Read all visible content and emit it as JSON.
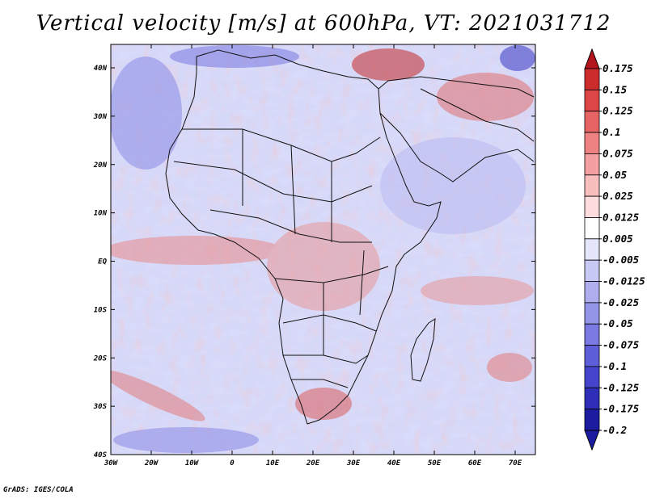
{
  "title": "Vertical velocity [m/s] at 600hPa, VT: 2021031712",
  "footer": "GrADS: IGES/COLA",
  "map": {
    "region": "Africa",
    "variable": "Vertical velocity",
    "units": "m/s",
    "level": "600hPa",
    "valid_time": "2021031712",
    "lat_labels": [
      "40N",
      "30N",
      "20N",
      "10N",
      "EQ",
      "10S",
      "20S",
      "30S",
      "40S"
    ],
    "lon_labels": [
      "30W",
      "20W",
      "10W",
      "0",
      "10E",
      "20E",
      "30E",
      "40E",
      "50E",
      "60E",
      "70E"
    ]
  },
  "colorbar": {
    "levels": [
      "0.175",
      "0.15",
      "0.125",
      "0.1",
      "0.075",
      "0.05",
      "0.025",
      "0.0125",
      "0.005",
      "-0.005",
      "-0.0125",
      "-0.025",
      "-0.05",
      "-0.075",
      "-0.1",
      "-0.125",
      "-0.175",
      "-0.2"
    ],
    "colors": [
      "#b4141e",
      "#cc2c2c",
      "#dc4646",
      "#e66464",
      "#ee8282",
      "#f4a0a0",
      "#f8bebe",
      "#fcdcdc",
      "#ffffff",
      "#e4e4fa",
      "#c8c8f4",
      "#aeaeee",
      "#9494e8",
      "#7a7ae2",
      "#5e5ed8",
      "#4444cc",
      "#2e2eb8",
      "#1c1ca0"
    ]
  }
}
